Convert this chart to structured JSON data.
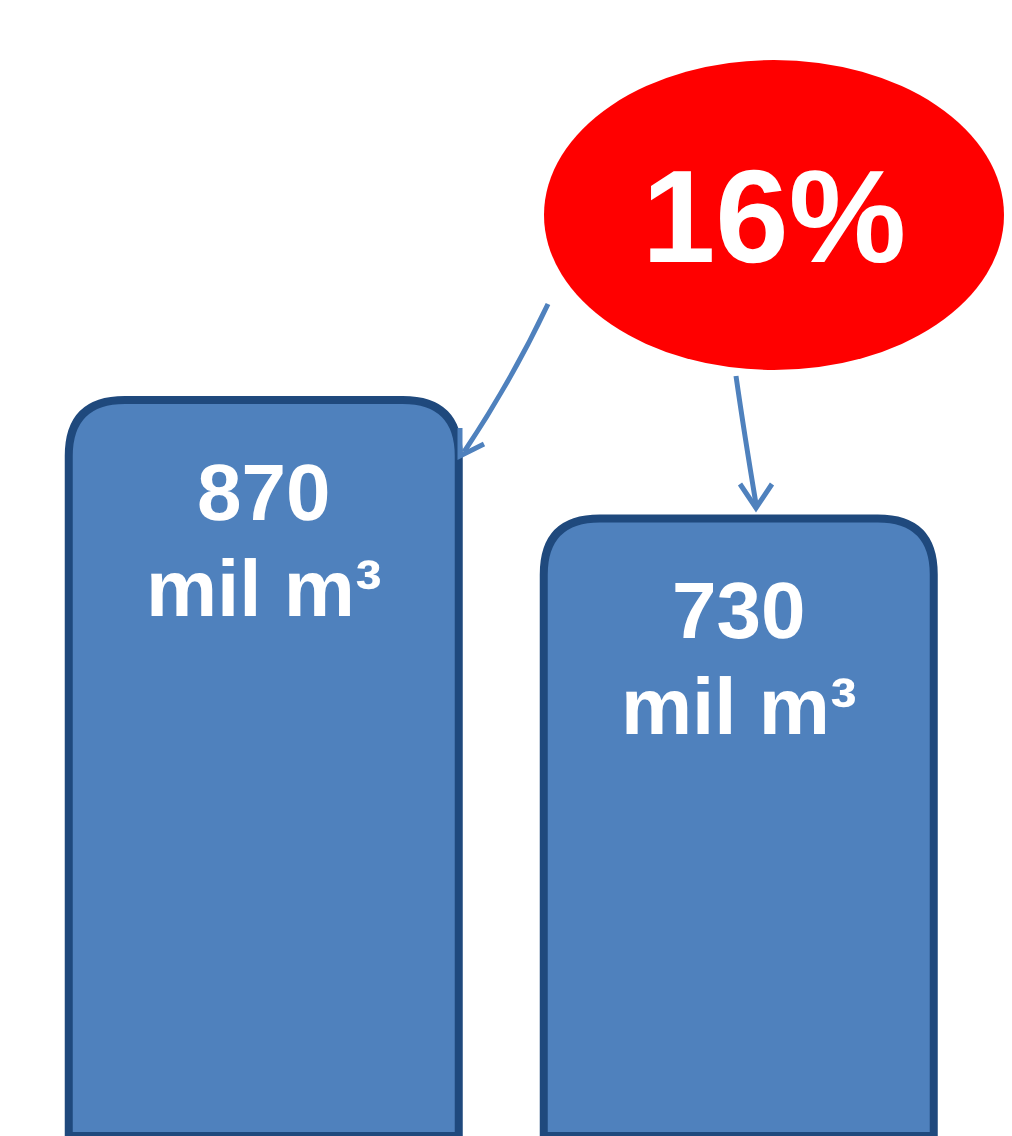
{
  "chart_data": {
    "type": "bar",
    "categories": [
      null,
      null
    ],
    "values": [
      870,
      730
    ],
    "color": "#4f81bd",
    "value_labels": [
      "870 mil m³",
      "730 mil m³"
    ],
    "annotations": [
      "16%"
    ]
  }
}
